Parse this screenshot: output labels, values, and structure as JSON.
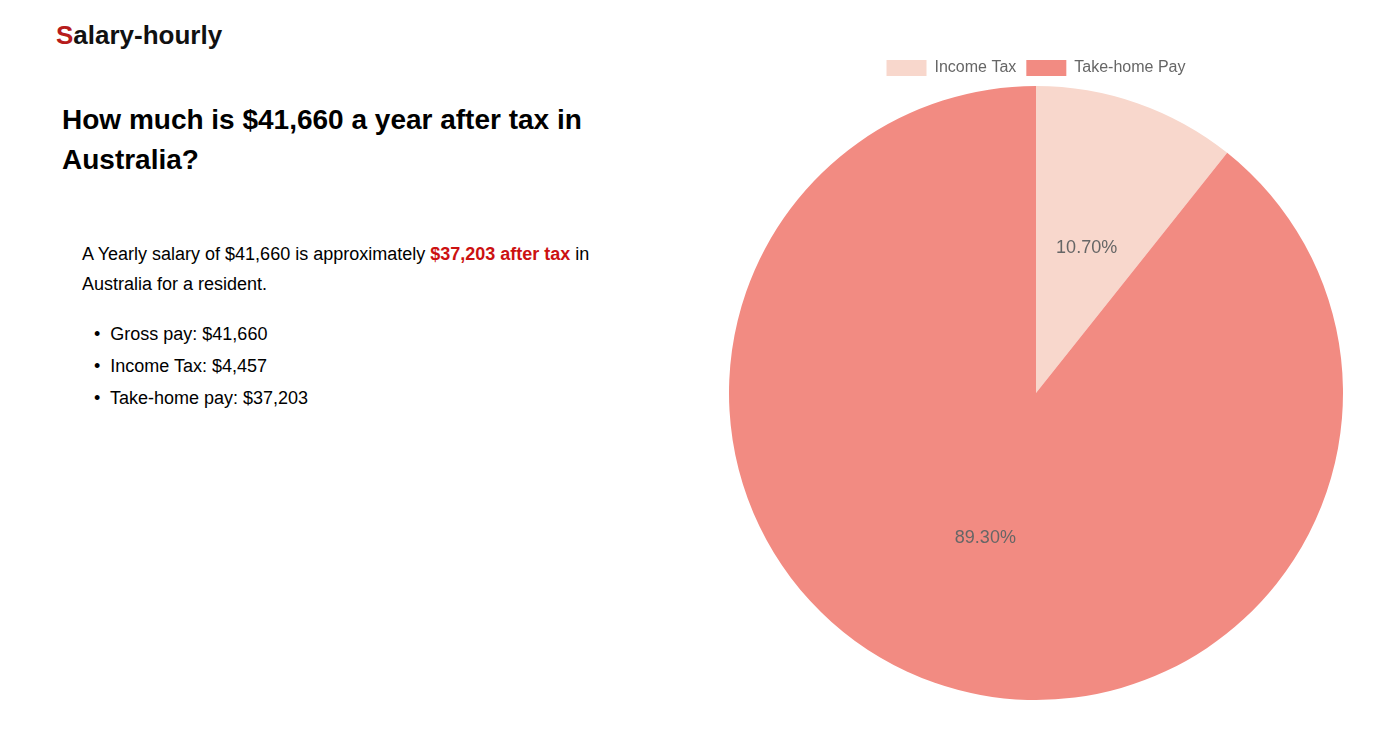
{
  "chart_data": {
    "type": "pie",
    "title": [
      "How much is $41,660 a year after tax in",
      "Australia?"
    ],
    "annotations": [
      [
        {
          "text": "S",
          "color": "#b71c1c"
        },
        {
          "text": "alary-hourly",
          "color": "#111111"
        }
      ],
      [
        {
          "text": "A Yearly salary of $41,660 is approximately "
        },
        {
          "text": "$37,203 after tax",
          "color": "#cc1111"
        },
        {
          "text": " in"
        }
      ],
      [
        {
          "text": "Australia for a resident."
        }
      ],
      [
        {
          "text": "•  Gross pay: $41,660"
        }
      ],
      [
        {
          "text": "•  Income Tax: $4,457"
        }
      ],
      [
        {
          "text": "•  Take-home pay: $37,203"
        }
      ]
    ],
    "categories": [
      "Income Tax",
      "Take-home Pay"
    ],
    "values": [
      10.7,
      89.3
    ],
    "value_labels": [
      "10.70%",
      "89.30%"
    ],
    "colors": [
      "#f8d7cc",
      "#f28b82"
    ],
    "data_labels": true,
    "legend": "top"
  }
}
